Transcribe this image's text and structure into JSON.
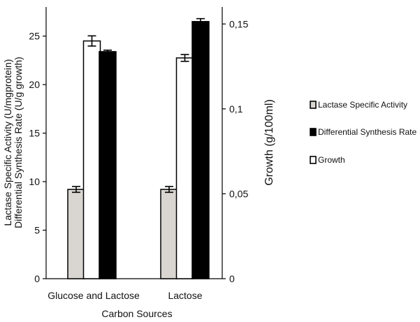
{
  "chart_data": {
    "type": "bar",
    "title": "",
    "xlabel": "Carbon Sources",
    "ylabel_left_line1": "Lactase Specific Activity (U/mgprotein)",
    "ylabel_left_line2": "Differential Synthesis Rate (U/g growth)",
    "ylabel_right": "Growth (g/100ml)",
    "categories": [
      "Glucose and Lactose",
      "Lactose"
    ],
    "ylim": [
      0,
      28
    ],
    "y_ticks": [
      0,
      5,
      10,
      15,
      20,
      25
    ],
    "y_right_lim": [
      0,
      0.16
    ],
    "y_right_ticks": [
      {
        "value": 0,
        "label": "0"
      },
      {
        "value": 0.05,
        "label": "0,05"
      },
      {
        "value": 0.1,
        "label": "0,1"
      },
      {
        "value": 0.15,
        "label": "0,15"
      }
    ],
    "series": [
      {
        "name": "Lactase Specific Activity",
        "axis": "left",
        "values": [
          9.2,
          9.2
        ],
        "errors": [
          0.3,
          0.3
        ],
        "color": "#d9d6d2"
      },
      {
        "name": "Growth",
        "axis": "right",
        "values": [
          0.14,
          0.13
        ],
        "errors": [
          0.003,
          0.002
        ],
        "color": "#ffffff"
      },
      {
        "name": "Differential Synthesis Rate",
        "axis": "left",
        "values": [
          23.4,
          26.5
        ],
        "errors": [
          0.15,
          0.3
        ],
        "color": "#000000"
      }
    ],
    "legend": {
      "placement": "right",
      "entries": [
        {
          "label": "Lactase Specific Activity",
          "color": "#d9d6d2"
        },
        {
          "label": "Differential Synthesis Rate",
          "color": "#000000"
        },
        {
          "label": "Growth",
          "color": "#ffffff"
        }
      ]
    },
    "grid": false
  }
}
